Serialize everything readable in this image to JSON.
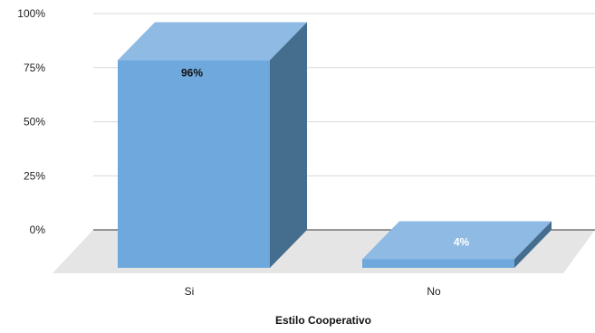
{
  "chart_data": {
    "type": "bar",
    "title": "",
    "xlabel": "Estilo Cooperativo",
    "ylabel": "",
    "categories": [
      "Si",
      "No"
    ],
    "values": [
      96,
      4
    ],
    "data_labels": [
      "96%",
      "4%"
    ],
    "y_ticks": [
      "0%",
      "25%",
      "50%",
      "75%",
      "100%"
    ],
    "ylim": [
      0,
      100
    ],
    "grid": true,
    "legend": "none",
    "colors": {
      "front": "#6FA8DC",
      "top": "#8FBAE3",
      "side": "#456D8E",
      "floor": "#E5E5E5",
      "grid": "#D9D9D9"
    }
  }
}
